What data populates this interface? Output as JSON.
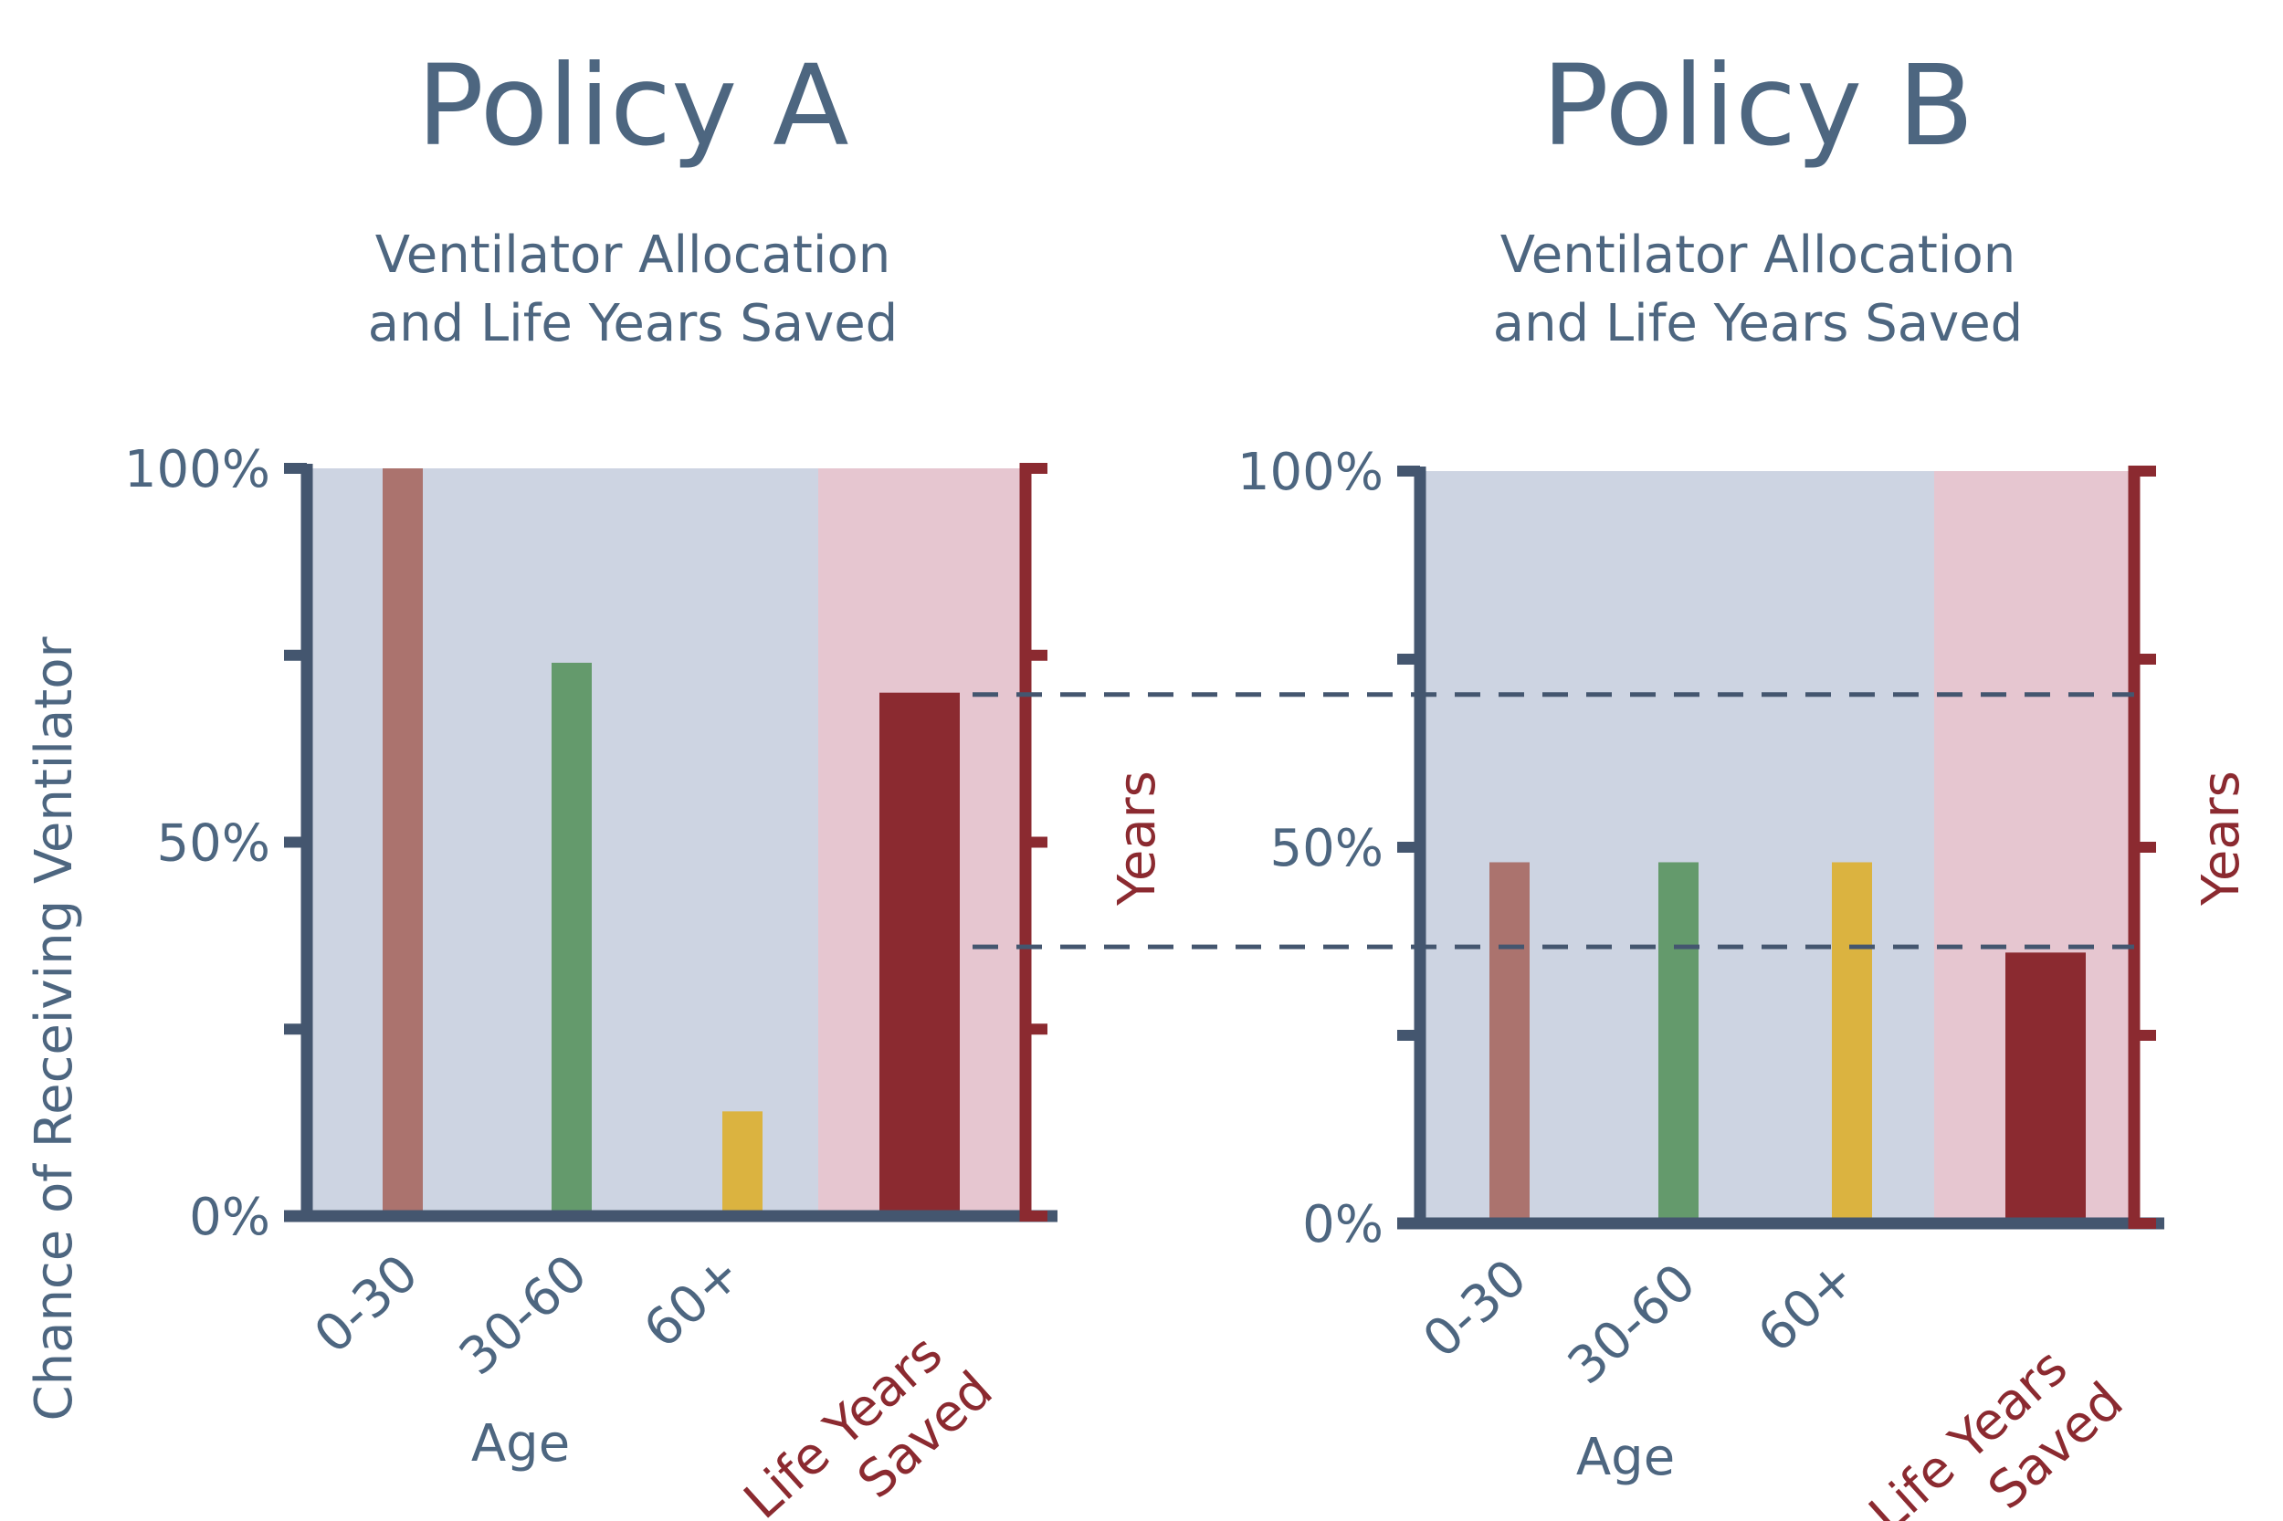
{
  "colors": {
    "axis": "#44566f",
    "text": "#4d6680",
    "red_axis": "#8b2a30",
    "panel_blue": "#cdd4e2",
    "panel_pink": "#e6c6d0",
    "dash": "#44566f"
  },
  "shared": {
    "ylabel": "Chance of Receiving Ventilator",
    "xlabel": "Age",
    "right_axis_label": "Years",
    "y_tick_labels": [
      "0%",
      "50%",
      "100%"
    ]
  },
  "chart_data": [
    {
      "type": "bar",
      "title": "Policy A",
      "subtitle_lines": [
        "Ventilator Allocation",
        "and Life Years Saved"
      ],
      "xlabel": "Age",
      "ylabel": "Chance of Receiving Ventilator",
      "right_ylabel": "Years",
      "ylim": [
        0,
        100
      ],
      "y_ticks": [
        0,
        50,
        100
      ],
      "categories": [
        "0-30",
        "30-60",
        "60+"
      ],
      "values": [
        100,
        74,
        14
      ],
      "bar_colors": [
        "#ab736e",
        "#649a6c",
        "#dbb340"
      ],
      "life_years_saved": {
        "label_lines": [
          "Life Years",
          "Saved"
        ],
        "value": 70,
        "color": "#8b2a30"
      },
      "grid": false
    },
    {
      "type": "bar",
      "title": "Policy B",
      "subtitle_lines": [
        "Ventilator Allocation",
        "and Life Years Saved"
      ],
      "xlabel": "Age",
      "right_ylabel": "Years",
      "ylim": [
        0,
        100
      ],
      "y_ticks": [
        0,
        50,
        100
      ],
      "categories": [
        "0-30",
        "30-60",
        "60+"
      ],
      "values": [
        48,
        48,
        48
      ],
      "bar_colors": [
        "#ab736e",
        "#649a6c",
        "#dbb340"
      ],
      "life_years_saved": {
        "label_lines": [
          "Life Years",
          "Saved"
        ],
        "value": 36,
        "color": "#8b2a30"
      },
      "grid": false
    }
  ]
}
